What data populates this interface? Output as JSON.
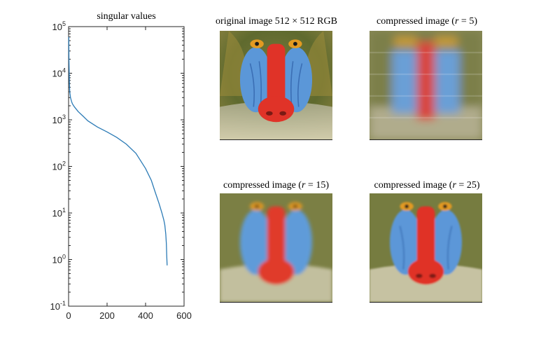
{
  "chart_data": {
    "type": "line",
    "title": "singular values",
    "yscale": "log",
    "xlim": [
      0,
      600
    ],
    "ylim_exponents": [
      -1,
      5
    ],
    "xticks": [
      0,
      200,
      400,
      600
    ],
    "xtick_labels": [
      "0",
      "200",
      "400",
      "600"
    ],
    "yticks": [
      -1,
      0,
      1,
      2,
      3,
      4,
      5
    ],
    "ytick_labels": [
      "-1",
      "0",
      "1",
      "2",
      "3",
      "4",
      "5"
    ],
    "ytick_base": "10",
    "line_color": "#2c7bb6",
    "series": [
      {
        "name": "singular values",
        "x": [
          1,
          2,
          4,
          6,
          10,
          15,
          20,
          30,
          50,
          75,
          100,
          150,
          200,
          250,
          300,
          350,
          400,
          430,
          450,
          470,
          485,
          495,
          500,
          505,
          508,
          510,
          512
        ],
        "y": [
          60000,
          20000,
          7000,
          4000,
          3000,
          2500,
          2200,
          1900,
          1500,
          1200,
          950,
          700,
          550,
          420,
          300,
          190,
          90,
          50,
          28,
          16,
          10,
          7,
          5.5,
          3.5,
          2.2,
          1.2,
          0.75
        ]
      }
    ]
  },
  "panels": {
    "original": {
      "title": "original image 512 × 512 RGB"
    },
    "r5": {
      "title_prefix": "compressed image (",
      "var": "r",
      "eq": " = 5)"
    },
    "r15": {
      "title_prefix": "compressed image (",
      "var": "r",
      "eq": " = 15)"
    },
    "r25": {
      "title_prefix": "compressed image (",
      "var": "r",
      "eq": " = 25)"
    }
  },
  "colors": {
    "fur": "#6b6a3a",
    "nose_red": "#e03328",
    "cheek_blue": "#5b97d8",
    "eye_orange": "#e39a21",
    "beard": "#c9c6a8"
  }
}
